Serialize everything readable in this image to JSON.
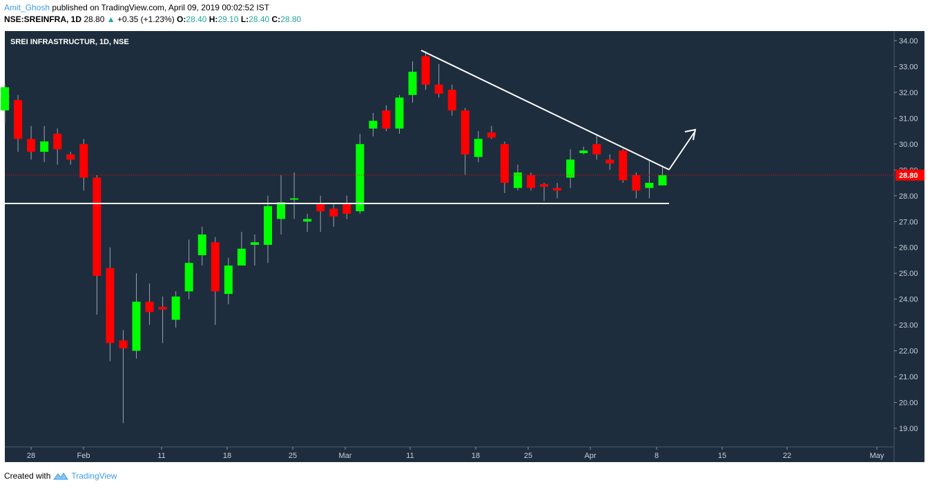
{
  "header": {
    "author": "Amit_Ghosh",
    "published": "published on TradingView.com, April 09, 2019 00:02:52 IST",
    "symbol": "NSE:SREINFRA, 1D",
    "last": "28.80",
    "change": "+0.35 (+1.23%)",
    "o_label": "O:",
    "o_value": "28.40",
    "h_label": "H:",
    "h_value": "29.10",
    "l_label": "L:",
    "l_value": "28.40",
    "c_label": "C:",
    "c_value": "28.80"
  },
  "footer": {
    "created_with": "Created with",
    "brand": "TradingView"
  },
  "colors": {
    "background": "#1e2d3d",
    "up": "#00ff00",
    "down": "#ff0000",
    "line": "#ffffff",
    "price_label": "#ff0000"
  },
  "chart_data": {
    "type": "candlestick",
    "title": "SREI INFRASTRUCTUR, 1D, NSE",
    "ylim": [
      18.6,
      34.4
    ],
    "y_ticks": [
      "34.00",
      "33.00",
      "32.00",
      "31.00",
      "30.00",
      "29.00",
      "28.00",
      "27.00",
      "26.00",
      "25.00",
      "24.00",
      "23.00",
      "22.00",
      "21.00",
      "20.00",
      "19.00"
    ],
    "x_ticks": [
      "28",
      "Feb",
      "11",
      "18",
      "25",
      "Mar",
      "11",
      "18",
      "25",
      "Apr",
      "8",
      "15",
      "22",
      "May"
    ],
    "last_price": "28.80",
    "candles": [
      {
        "o": 31.3,
        "h": 32.3,
        "l": 30.8,
        "c": 32.2
      },
      {
        "o": 31.7,
        "h": 31.9,
        "l": 29.7,
        "c": 30.2
      },
      {
        "o": 30.2,
        "h": 30.7,
        "l": 29.4,
        "c": 29.7
      },
      {
        "o": 29.7,
        "h": 30.7,
        "l": 29.3,
        "c": 30.1
      },
      {
        "o": 30.4,
        "h": 30.6,
        "l": 29.2,
        "c": 29.8
      },
      {
        "o": 29.6,
        "h": 29.7,
        "l": 29.2,
        "c": 29.4
      },
      {
        "o": 30.0,
        "h": 30.2,
        "l": 28.2,
        "c": 28.7
      },
      {
        "o": 28.7,
        "h": 28.8,
        "l": 23.4,
        "c": 24.9
      },
      {
        "o": 25.2,
        "h": 26.0,
        "l": 21.6,
        "c": 22.3
      },
      {
        "o": 22.4,
        "h": 22.8,
        "l": 19.2,
        "c": 22.1
      },
      {
        "o": 22.0,
        "h": 25.0,
        "l": 21.7,
        "c": 23.9
      },
      {
        "o": 23.9,
        "h": 24.6,
        "l": 23.0,
        "c": 23.5
      },
      {
        "o": 23.7,
        "h": 24.1,
        "l": 22.3,
        "c": 23.6
      },
      {
        "o": 23.2,
        "h": 24.3,
        "l": 22.9,
        "c": 24.1
      },
      {
        "o": 24.3,
        "h": 26.3,
        "l": 24.0,
        "c": 25.4
      },
      {
        "o": 25.7,
        "h": 26.8,
        "l": 25.3,
        "c": 26.5
      },
      {
        "o": 26.2,
        "h": 26.4,
        "l": 23.0,
        "c": 24.3
      },
      {
        "o": 24.2,
        "h": 25.6,
        "l": 23.8,
        "c": 25.3
      },
      {
        "o": 25.3,
        "h": 26.6,
        "l": 25.3,
        "c": 25.95
      },
      {
        "o": 26.1,
        "h": 26.5,
        "l": 25.3,
        "c": 26.2
      },
      {
        "o": 26.1,
        "h": 28.0,
        "l": 25.4,
        "c": 27.6
      },
      {
        "o": 27.1,
        "h": 28.8,
        "l": 26.5,
        "c": 27.75
      },
      {
        "o": 27.85,
        "h": 28.9,
        "l": 27.1,
        "c": 27.9
      },
      {
        "o": 27.0,
        "h": 27.3,
        "l": 26.6,
        "c": 27.1
      },
      {
        "o": 27.7,
        "h": 28.0,
        "l": 26.6,
        "c": 27.4
      },
      {
        "o": 27.5,
        "h": 27.7,
        "l": 26.8,
        "c": 27.2
      },
      {
        "o": 27.7,
        "h": 28.0,
        "l": 27.1,
        "c": 27.3
      },
      {
        "o": 27.4,
        "h": 30.4,
        "l": 27.3,
        "c": 30.0
      },
      {
        "o": 30.6,
        "h": 31.2,
        "l": 30.3,
        "c": 30.9
      },
      {
        "o": 31.3,
        "h": 31.5,
        "l": 30.5,
        "c": 30.6
      },
      {
        "o": 30.6,
        "h": 31.9,
        "l": 30.4,
        "c": 31.8
      },
      {
        "o": 31.9,
        "h": 33.2,
        "l": 31.6,
        "c": 32.8
      },
      {
        "o": 33.4,
        "h": 33.6,
        "l": 32.1,
        "c": 32.3
      },
      {
        "o": 32.3,
        "h": 33.1,
        "l": 31.8,
        "c": 31.95
      },
      {
        "o": 32.1,
        "h": 32.3,
        "l": 31.1,
        "c": 31.3
      },
      {
        "o": 31.3,
        "h": 31.4,
        "l": 28.8,
        "c": 29.6
      },
      {
        "o": 29.5,
        "h": 30.5,
        "l": 29.3,
        "c": 30.2
      },
      {
        "o": 30.45,
        "h": 30.7,
        "l": 30.2,
        "c": 30.25
      },
      {
        "o": 30.0,
        "h": 30.1,
        "l": 28.1,
        "c": 28.5
      },
      {
        "o": 28.3,
        "h": 29.2,
        "l": 28.2,
        "c": 28.9
      },
      {
        "o": 28.8,
        "h": 28.9,
        "l": 28.2,
        "c": 28.3
      },
      {
        "o": 28.45,
        "h": 28.5,
        "l": 27.8,
        "c": 28.35
      },
      {
        "o": 28.3,
        "h": 28.5,
        "l": 27.9,
        "c": 28.2
      },
      {
        "o": 28.7,
        "h": 29.8,
        "l": 28.3,
        "c": 29.4
      },
      {
        "o": 29.65,
        "h": 29.9,
        "l": 29.6,
        "c": 29.75
      },
      {
        "o": 30.0,
        "h": 30.4,
        "l": 29.4,
        "c": 29.6
      },
      {
        "o": 29.4,
        "h": 29.6,
        "l": 29.0,
        "c": 29.25
      },
      {
        "o": 29.75,
        "h": 29.8,
        "l": 28.5,
        "c": 28.6
      },
      {
        "o": 28.8,
        "h": 28.9,
        "l": 27.9,
        "c": 28.2
      },
      {
        "o": 28.3,
        "h": 29.4,
        "l": 27.9,
        "c": 28.5
      },
      {
        "o": 28.4,
        "h": 29.1,
        "l": 28.4,
        "c": 28.8
      }
    ]
  }
}
